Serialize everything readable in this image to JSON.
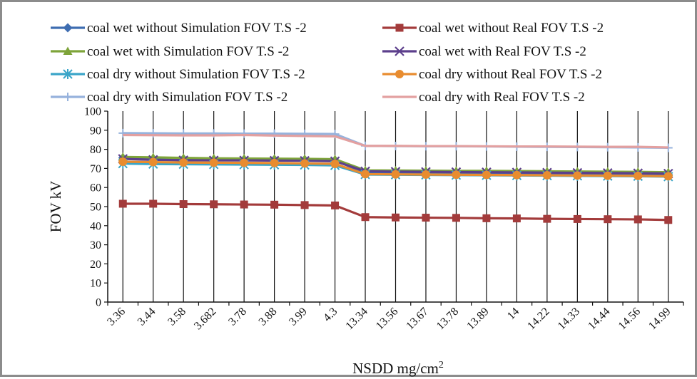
{
  "chart_data": {
    "type": "line",
    "title": "",
    "xlabel": "NSDD mg/cm2",
    "xlabel_base": "NSDD mg/cm",
    "xlabel_sup": "2",
    "ylabel": "FOV kV",
    "ylim": [
      0,
      100
    ],
    "yticks": [
      0,
      10,
      20,
      30,
      40,
      50,
      60,
      70,
      80,
      90,
      100
    ],
    "grid": "vertical lines at categories",
    "legend_position": "top",
    "categories": [
      "3.36",
      "3.44",
      "3.58",
      "3.682",
      "3.78",
      "3.88",
      "3.99",
      "4.3",
      "13.34",
      "13.56",
      "13.67",
      "13.78",
      "13.89",
      "14",
      "14.22",
      "14.33",
      "14.44",
      "14.56",
      "14.99"
    ],
    "series": [
      {
        "name": "coal wet without Simulation FOV T.S -2",
        "color": "#3e6db1",
        "marker": "diamond",
        "values": [
          75.5,
          75,
          75,
          74.7,
          74.7,
          74.7,
          74.6,
          74.3,
          67.5,
          67.5,
          67.4,
          67.4,
          67.3,
          67.3,
          67.2,
          67.1,
          67,
          66.9,
          66.7
        ]
      },
      {
        "name": "coal wet without Real FOV T.S -2",
        "color": "#a33b3b",
        "marker": "square",
        "values": [
          51.5,
          51.5,
          51.3,
          51.2,
          51.1,
          51,
          50.8,
          50.6,
          44.5,
          44.3,
          44.2,
          44.1,
          43.9,
          43.8,
          43.6,
          43.5,
          43.4,
          43.3,
          43
        ]
      },
      {
        "name": "coal wet with Simulation FOV T.S -2",
        "color": "#7ea43a",
        "marker": "triangle",
        "values": [
          76,
          75.8,
          75.5,
          75.3,
          75.2,
          75.1,
          75,
          74.8,
          69,
          68.9,
          68.8,
          68.7,
          68.7,
          68.6,
          68.5,
          68.4,
          68.3,
          68.2,
          68
        ]
      },
      {
        "name": "coal wet with Real FOV T.S -2",
        "color": "#5c3f8c",
        "marker": "x",
        "values": [
          75,
          74.5,
          74.3,
          74.2,
          74.2,
          74.1,
          74,
          73.8,
          68.5,
          68.3,
          68.2,
          68.1,
          68,
          67.9,
          67.8,
          67.7,
          67.6,
          67.5,
          67.3
        ]
      },
      {
        "name": "coal dry without Simulation FOV T.S -2",
        "color": "#3aa5c8",
        "marker": "asterisk",
        "values": [
          72.5,
          72.3,
          72.2,
          72.1,
          72,
          71.9,
          71.8,
          71.6,
          66.8,
          66.7,
          66.6,
          66.5,
          66.4,
          66.3,
          66.2,
          66.1,
          66,
          65.9,
          65.7
        ]
      },
      {
        "name": "coal dry without Real FOV T.S -2",
        "color": "#e88c2f",
        "marker": "circle",
        "values": [
          73.5,
          73.3,
          73.1,
          73,
          72.9,
          72.8,
          72.6,
          72.4,
          67,
          66.9,
          66.8,
          66.7,
          66.6,
          66.5,
          66.4,
          66.3,
          66.2,
          66.1,
          65.9
        ]
      },
      {
        "name": "coal dry with Simulation FOV T.S -2",
        "color": "#96b2dc",
        "marker": "plus",
        "values": [
          88.5,
          88.4,
          88.3,
          88.3,
          88.2,
          88.2,
          88.1,
          88,
          81.8,
          81.7,
          81.6,
          81.6,
          81.5,
          81.4,
          81.3,
          81.2,
          81.1,
          81,
          80.8
        ]
      },
      {
        "name": "coal dry with Real FOV T.S -2",
        "color": "#e3a0a0",
        "marker": "none",
        "values": [
          87.5,
          87.4,
          87.3,
          87.3,
          87.5,
          87.2,
          87,
          86.8,
          81.8,
          81.8,
          81.7,
          81.7,
          81.6,
          81.5,
          81.5,
          81.4,
          81.3,
          81.3,
          81
        ]
      }
    ]
  }
}
